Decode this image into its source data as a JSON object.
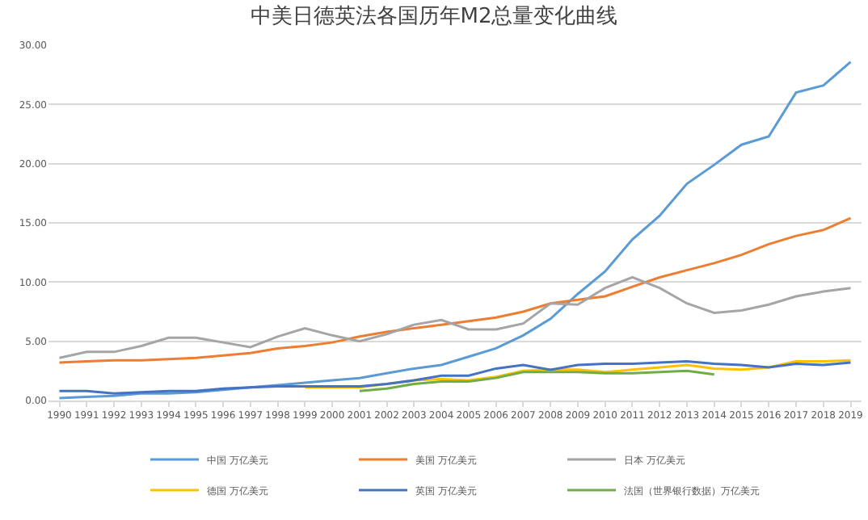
{
  "chart_data": {
    "type": "line",
    "title": "中美日德英法各国历年M2总量变化曲线",
    "categories": [
      "1990",
      "1991",
      "1992",
      "1993",
      "1994",
      "1995",
      "1996",
      "1997",
      "1998",
      "1999",
      "2000",
      "2001",
      "2002",
      "2003",
      "2004",
      "2005",
      "2006",
      "2007",
      "2008",
      "2009",
      "2010",
      "2011",
      "2012",
      "2013",
      "2014",
      "2015",
      "2016",
      "2017",
      "2018",
      "2019"
    ],
    "series": [
      {
        "name": "中国 万亿美元",
        "color": "#5b9bd5",
        "values": [
          0.2,
          0.3,
          0.4,
          0.6,
          0.6,
          0.7,
          0.9,
          1.1,
          1.3,
          1.5,
          1.7,
          1.9,
          2.3,
          2.7,
          3.0,
          3.7,
          4.4,
          5.5,
          6.9,
          9.0,
          10.9,
          13.6,
          15.6,
          18.3,
          19.9,
          21.6,
          22.3,
          26.0,
          26.6,
          28.6
        ]
      },
      {
        "name": "美国 万亿美元",
        "color": "#ed7d31",
        "values": [
          3.2,
          3.3,
          3.4,
          3.4,
          3.5,
          3.6,
          3.8,
          4.0,
          4.4,
          4.6,
          4.9,
          5.4,
          5.8,
          6.1,
          6.4,
          6.7,
          7.0,
          7.5,
          8.2,
          8.5,
          8.8,
          9.6,
          10.4,
          11.0,
          11.6,
          12.3,
          13.2,
          13.9,
          14.4,
          15.4
        ]
      },
      {
        "name": "日本 万亿美元",
        "color": "#a5a5a5",
        "values": [
          3.6,
          4.1,
          4.1,
          4.6,
          5.3,
          5.3,
          4.9,
          4.5,
          5.4,
          6.1,
          5.5,
          5.0,
          5.6,
          6.4,
          6.8,
          6.0,
          6.0,
          6.5,
          8.2,
          8.1,
          9.5,
          10.4,
          9.5,
          8.2,
          7.4,
          7.6,
          8.1,
          8.8,
          9.2,
          9.5
        ]
      },
      {
        "name": "德国 万亿美元",
        "color": "#ffc000",
        "values": [
          null,
          null,
          null,
          null,
          null,
          null,
          null,
          null,
          null,
          1.1,
          1.1,
          1.1,
          1.4,
          1.7,
          1.8,
          1.7,
          2.0,
          2.5,
          2.6,
          2.6,
          2.4,
          2.6,
          2.8,
          3.0,
          2.7,
          2.6,
          2.8,
          3.3,
          3.3,
          3.4
        ]
      },
      {
        "name": "英国 万亿美元",
        "color": "#4472c4",
        "values": [
          0.8,
          0.8,
          0.6,
          0.7,
          0.8,
          0.8,
          1.0,
          1.1,
          1.2,
          1.2,
          1.2,
          1.2,
          1.4,
          1.7,
          2.1,
          2.1,
          2.7,
          3.0,
          2.6,
          3.0,
          3.1,
          3.1,
          3.2,
          3.3,
          3.1,
          3.0,
          2.8,
          3.1,
          3.0,
          3.2
        ]
      },
      {
        "name": "法国（世界银行数据）万亿美元",
        "color": "#70ad47",
        "values": [
          null,
          null,
          null,
          null,
          null,
          null,
          null,
          null,
          null,
          null,
          null,
          0.8,
          1.0,
          1.4,
          1.6,
          1.6,
          1.9,
          2.4,
          2.4,
          2.4,
          2.3,
          2.3,
          2.4,
          2.5,
          2.2,
          null,
          null,
          null,
          null,
          null
        ]
      }
    ],
    "ylim": [
      0,
      30
    ],
    "yticks": [
      {
        "value": 0,
        "label": "0.00"
      },
      {
        "value": 5,
        "label": "5.00"
      },
      {
        "value": 10,
        "label": "10.00"
      },
      {
        "value": 15,
        "label": "15.00"
      },
      {
        "value": 20,
        "label": "20.00"
      },
      {
        "value": 25,
        "label": "25.00"
      },
      {
        "value": 30,
        "label": "30.00"
      }
    ],
    "grid": "y",
    "legend": "bottom",
    "marker": "none",
    "line_style": "solid"
  }
}
